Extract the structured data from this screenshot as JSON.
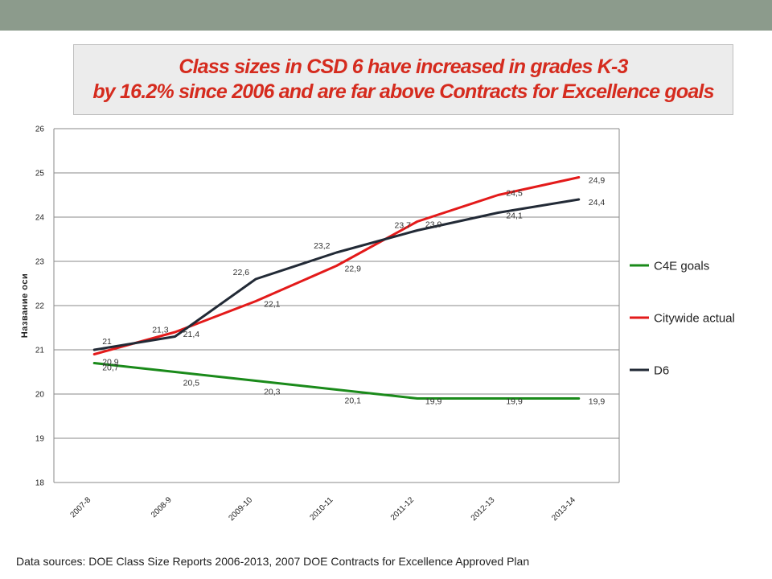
{
  "header": {
    "title_line1": "Class sizes in CSD 6 have increased in grades K-3",
    "title_line2": "by 16.2% since 2006 and are far above Contracts for Excellence goals"
  },
  "footer": {
    "source_note": "Data sources: DOE Class Size Reports 2006-2013, 2007 DOE Contracts for Excellence Approved Plan"
  },
  "colors": {
    "accent": "#d52b1e",
    "topbar": "#8c9b8c",
    "c4e": "#1a8a1a",
    "citywide": "#e31a1a",
    "d6": "#222a36"
  },
  "chart_data": {
    "type": "line",
    "title": "",
    "xlabel": "",
    "ylabel": "Название оси",
    "ylim": [
      18,
      26
    ],
    "yticks": [
      "18",
      "19",
      "20",
      "21",
      "22",
      "23",
      "24",
      "25",
      "26"
    ],
    "grid": true,
    "legend_position": "right",
    "categories": [
      "2007-8",
      "2008-9",
      "2009-10",
      "2010-11",
      "2011-12",
      "2012-13",
      "2013-14"
    ],
    "series": [
      {
        "name": "C4E goals",
        "color": "#1a8a1a",
        "values": [
          20.7,
          20.5,
          20.3,
          20.1,
          19.9,
          19.9,
          19.9
        ],
        "labels": [
          "20,7",
          "20,5",
          "20,3",
          "20,1",
          "19,9",
          "19,9",
          "19,9"
        ]
      },
      {
        "name": "Citywide actual",
        "color": "#e31a1a",
        "values": [
          20.9,
          21.4,
          22.1,
          22.9,
          23.9,
          24.5,
          24.9
        ],
        "labels": [
          "20,9",
          "21,4",
          "22,1",
          "22,9",
          "23,9",
          "24,5",
          "24,9"
        ]
      },
      {
        "name": "D6",
        "color": "#222a36",
        "values": [
          21.0,
          21.3,
          22.6,
          23.2,
          23.7,
          24.1,
          24.4
        ],
        "labels": [
          "21",
          "21,3",
          "22,6",
          "23,2",
          "23,7",
          "24,1",
          "24,4"
        ]
      }
    ]
  }
}
